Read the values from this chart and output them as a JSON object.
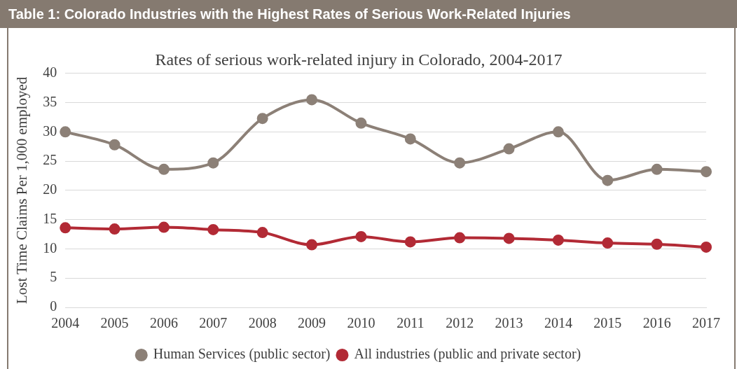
{
  "chart_data": {
    "type": "line",
    "title": "Table 1: Colorado Industries with the Highest Rates of Serious Work-Related Injuries",
    "subtitle": "Rates of serious work-related injury in Colorado, 2004-2017",
    "ylabel": "Lost Time Claims Per 1,000 employed",
    "categories": [
      "2004",
      "2005",
      "2006",
      "2007",
      "2008",
      "2009",
      "2010",
      "2011",
      "2012",
      "2013",
      "2014",
      "2015",
      "2016",
      "2017"
    ],
    "series": [
      {
        "name": "Human Services (public sector)",
        "color": "#8c8077",
        "values": [
          30,
          27.8,
          23.6,
          24.7,
          32.3,
          35.5,
          31.5,
          28.8,
          24.7,
          27.1,
          30,
          21.7,
          23.6,
          23.2
        ]
      },
      {
        "name": "All industries (public and private sector)",
        "color": "#b22a35",
        "values": [
          13.6,
          13.4,
          13.7,
          13.3,
          12.8,
          10.7,
          12.1,
          11.2,
          11.9,
          11.8,
          11.5,
          11,
          10.8,
          10.3
        ]
      }
    ],
    "ylim": [
      0,
      40
    ],
    "yticks": [
      0,
      5,
      10,
      15,
      20,
      25,
      30,
      35,
      40
    ],
    "grid": "y",
    "legend": "bottom",
    "marker": "circle",
    "line_style": "solid"
  }
}
